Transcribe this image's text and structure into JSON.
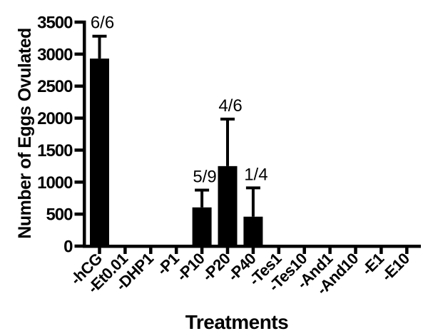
{
  "figure": {
    "background": "#ffffff"
  },
  "chart_data": {
    "type": "bar",
    "title": "",
    "xlabel": "Treatments",
    "ylabel": "Number of Eggs Ovulated",
    "categories": [
      "-hCG",
      "-Et0.01",
      "-DHP1",
      "-P1",
      "-P10",
      "-P20",
      "-P40",
      "-Tes1",
      "-Tes10",
      "-And1",
      "-And10",
      "-E1",
      "-E10"
    ],
    "values": [
      2930,
      0,
      0,
      0,
      605,
      1250,
      460,
      0,
      0,
      0,
      0,
      0,
      0
    ],
    "errors_up": [
      350,
      0,
      0,
      0,
      270,
      735,
      450,
      0,
      0,
      0,
      0,
      0,
      0
    ],
    "annotations": [
      {
        "index": 0,
        "text": "6/6"
      },
      {
        "index": 4,
        "text": "5/9"
      },
      {
        "index": 5,
        "text": "4/6"
      },
      {
        "index": 6,
        "text": "1/4"
      }
    ],
    "ylim": [
      0,
      3500
    ],
    "yticks": [
      0,
      500,
      1000,
      1500,
      2000,
      2500,
      3000,
      3500
    ],
    "xtick_rotation_deg": -45,
    "grid": false,
    "legend": "none",
    "bar_color": "#000000",
    "axis_color": "#000000",
    "error_bar_color": "#000000"
  }
}
